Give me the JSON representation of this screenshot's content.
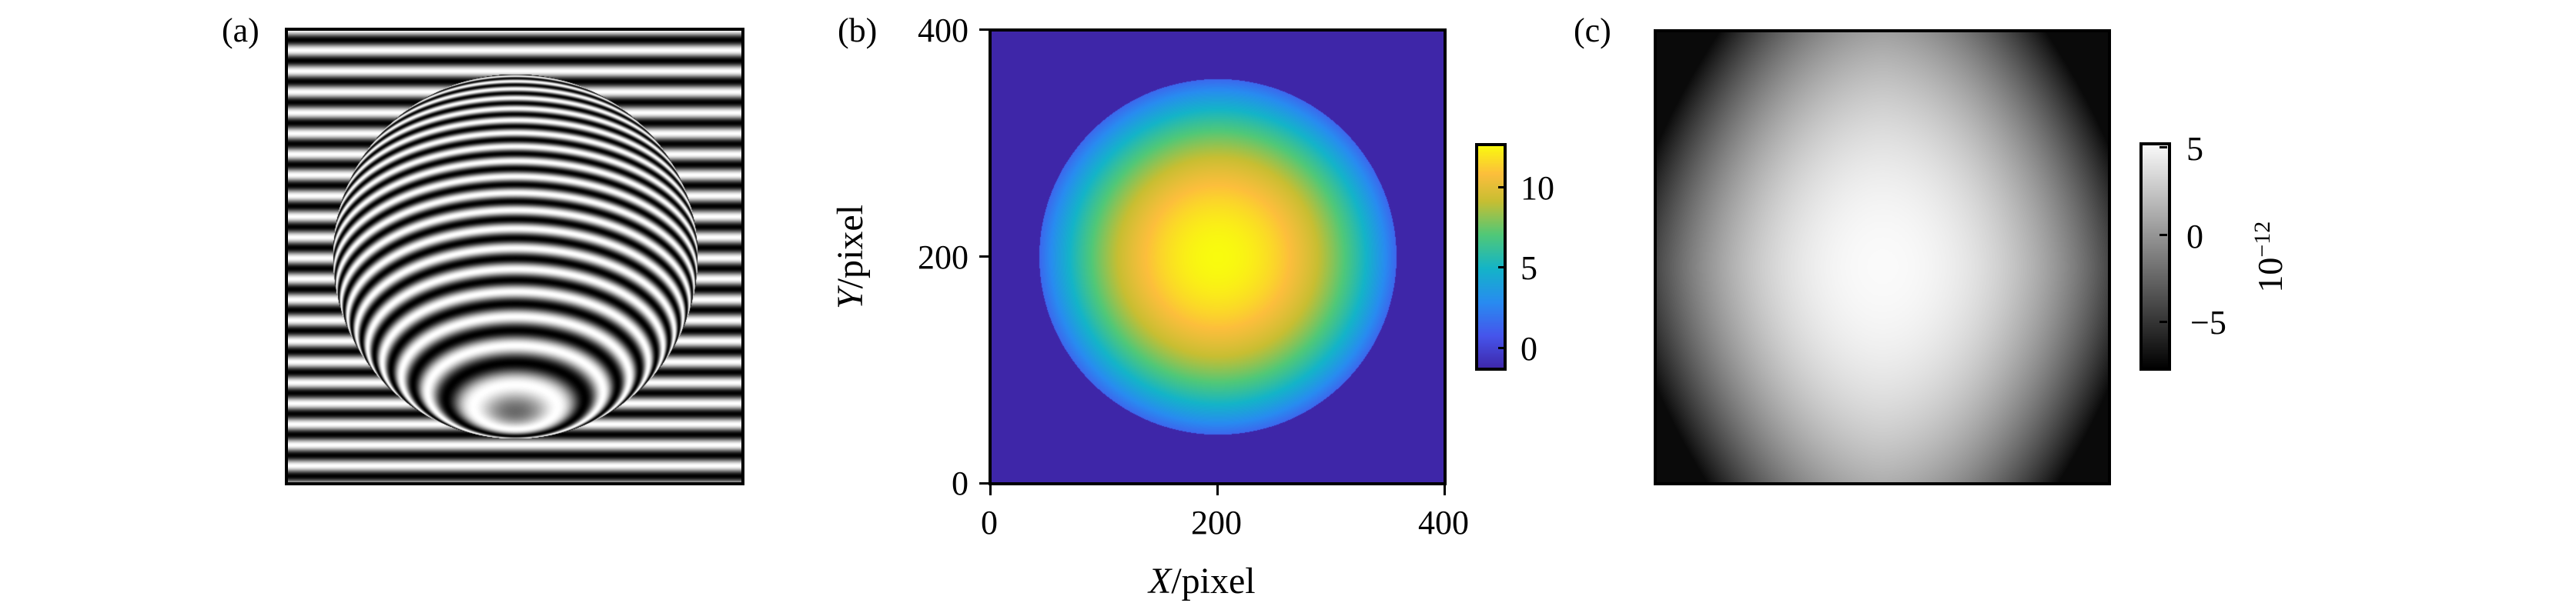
{
  "panels": {
    "a": {
      "label": "(a)"
    },
    "b": {
      "label": "(b)"
    },
    "c": {
      "label": "(c)"
    }
  },
  "chart_data": [
    {
      "panel": "(a)",
      "type": "heatmap",
      "description_visible": "grayscale fringe pattern",
      "colormap": "gray"
    },
    {
      "panel": "(b)",
      "type": "heatmap",
      "colormap": "parula",
      "xlabel_var": "X",
      "xlabel_unit": "/pixel",
      "ylabel_var": "Y",
      "ylabel_unit": "/pixel",
      "xlim": [
        0,
        400
      ],
      "ylim": [
        0,
        400
      ],
      "xticks": [
        "0",
        "200",
        "400"
      ],
      "yticks": [
        "0",
        "200",
        "400"
      ],
      "colorbar": {
        "range": [
          -1.3,
          12.7
        ],
        "ticks": [
          "0",
          "5",
          "10"
        ],
        "tick_values": [
          0,
          5,
          10
        ]
      }
    },
    {
      "panel": "(c)",
      "type": "heatmap",
      "colormap": "gray",
      "colorbar": {
        "range": [
          -7.7,
          5.3
        ],
        "ticks": [
          "5",
          "0",
          "−5"
        ],
        "tick_values": [
          5,
          0,
          -5
        ],
        "exponent_base": "10",
        "exponent_power": "−12"
      }
    }
  ]
}
